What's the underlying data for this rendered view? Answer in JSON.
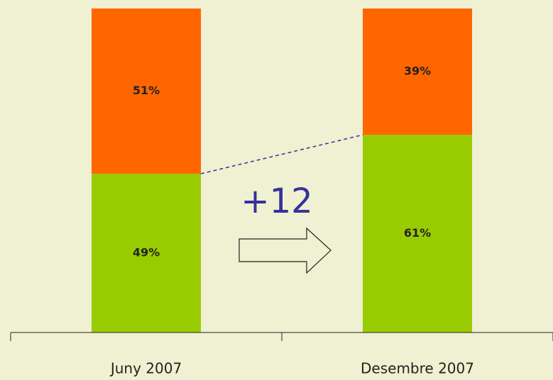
{
  "chart_data": {
    "type": "stacked_bar",
    "categories": [
      "Juny 2007",
      "Desembre 2007"
    ],
    "series": [
      {
        "color": "#99cc00",
        "values": [
          49,
          61
        ],
        "value_labels": [
          "49%",
          "61%"
        ]
      },
      {
        "color": "#ff6600",
        "values": [
          51,
          39
        ],
        "value_labels": [
          "51%",
          "39%"
        ]
      }
    ],
    "ylim": [
      0,
      100
    ],
    "annotation": "+12"
  }
}
